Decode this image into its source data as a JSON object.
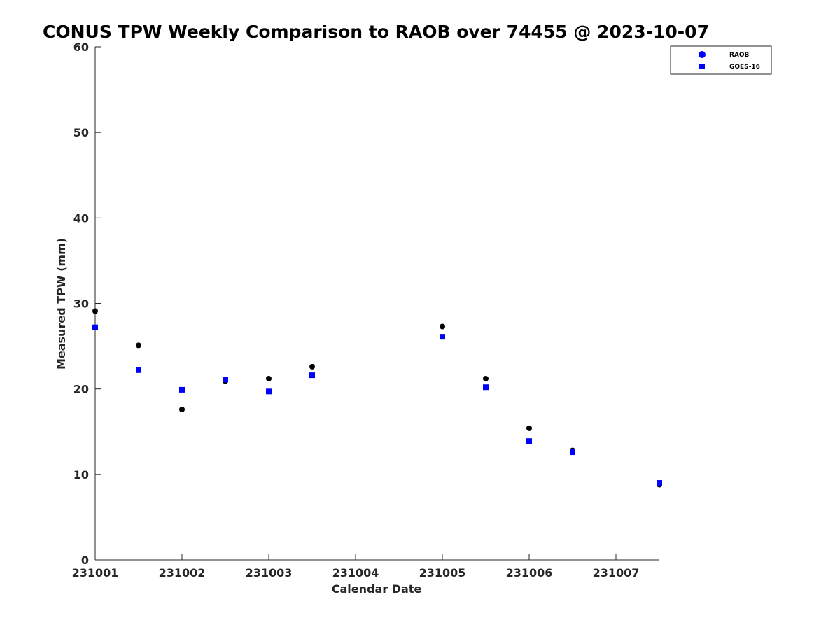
{
  "chart_data": {
    "type": "scatter",
    "title": "CONUS TPW Weekly Comparison to RAOB over 74455 @ 2023-10-07",
    "xlabel": "Calendar Date",
    "ylabel": "Measured TPW (mm)",
    "xlim": [
      0,
      6.5
    ],
    "ylim": [
      0,
      60
    ],
    "x_ticks": [
      0,
      1,
      2,
      3,
      4,
      5,
      6
    ],
    "x_tick_labels": [
      "231001",
      "231002",
      "231003",
      "231004",
      "231005",
      "231006",
      "231007"
    ],
    "y_ticks": [
      0,
      10,
      20,
      30,
      40,
      50,
      60
    ],
    "y_tick_labels": [
      "0",
      "10",
      "20",
      "30",
      "40",
      "50",
      "60"
    ],
    "grid": false,
    "legend_position": "top-right",
    "series": [
      {
        "name": "RAOB",
        "marker": "circle",
        "color": "#000000",
        "legend_color": "#0000ff",
        "x": [
          0,
          0.5,
          1,
          1.5,
          2,
          2.5,
          4,
          4.5,
          5,
          5.5,
          6.5
        ],
        "y": [
          29.1,
          25.1,
          17.6,
          20.9,
          21.2,
          22.6,
          27.3,
          21.2,
          15.4,
          12.8,
          8.8
        ]
      },
      {
        "name": "GOES-16",
        "marker": "square",
        "color": "#0000ff",
        "x": [
          0,
          0.5,
          1,
          1.5,
          2,
          2.5,
          4,
          4.5,
          5,
          5.5,
          6.5
        ],
        "y": [
          27.2,
          22.2,
          19.9,
          21.1,
          19.7,
          21.6,
          26.1,
          20.2,
          13.9,
          12.6,
          9.0
        ]
      }
    ]
  }
}
